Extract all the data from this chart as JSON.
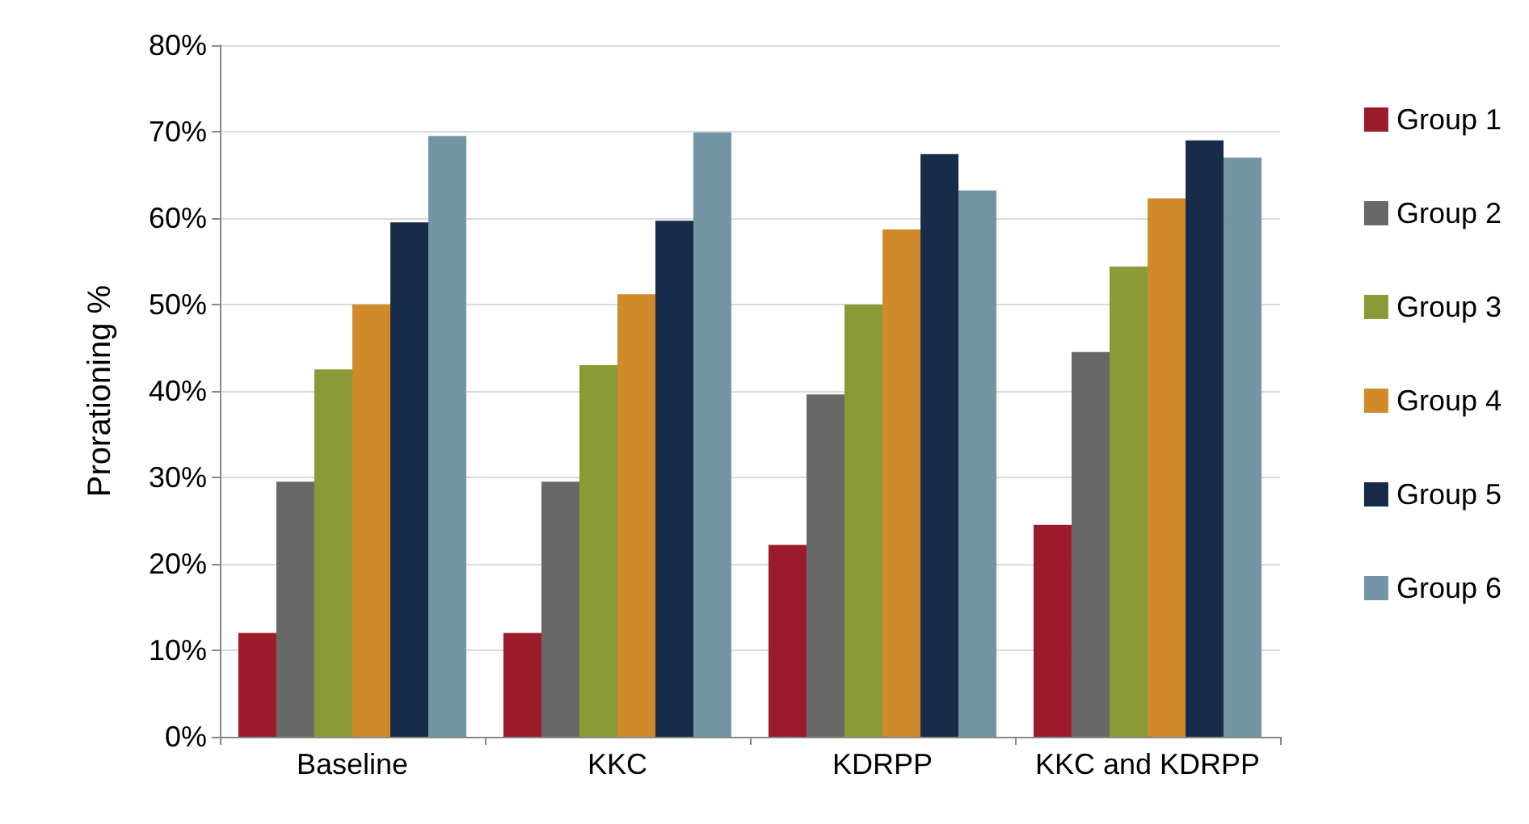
{
  "chart_data": {
    "type": "bar",
    "ylabel": "Prorationing %",
    "categories": [
      "Baseline",
      "KKC",
      "KDRPP",
      "KKC and KDRPP"
    ],
    "series": [
      {
        "name": "Group 1",
        "color": "#9b1b2a",
        "values": [
          12,
          12,
          22.2,
          24.5
        ]
      },
      {
        "name": "Group 2",
        "color": "#686868",
        "values": [
          29.5,
          29.5,
          39.6,
          44.5
        ]
      },
      {
        "name": "Group 3",
        "color": "#8a9a37",
        "values": [
          42.5,
          43,
          50,
          54.4
        ]
      },
      {
        "name": "Group 4",
        "color": "#d08a2a",
        "values": [
          50,
          51.2,
          58.7,
          62.3
        ]
      },
      {
        "name": "Group 5",
        "color": "#172c48",
        "values": [
          59.5,
          59.7,
          67.4,
          69
        ]
      },
      {
        "name": "Group 6",
        "color": "#7395a6",
        "values": [
          69.5,
          69.9,
          63.2,
          67
        ]
      }
    ],
    "ylim": [
      0,
      80
    ],
    "yticks": [
      {
        "value": 0,
        "label": "0%"
      },
      {
        "value": 10,
        "label": "10%"
      },
      {
        "value": 20,
        "label": "20%"
      },
      {
        "value": 30,
        "label": "30%"
      },
      {
        "value": 40,
        "label": "40%"
      },
      {
        "value": 50,
        "label": "50%"
      },
      {
        "value": 60,
        "label": "60%"
      },
      {
        "value": 70,
        "label": "70%"
      },
      {
        "value": 80,
        "label": "80%"
      }
    ],
    "grid": "y",
    "legend": "right"
  }
}
